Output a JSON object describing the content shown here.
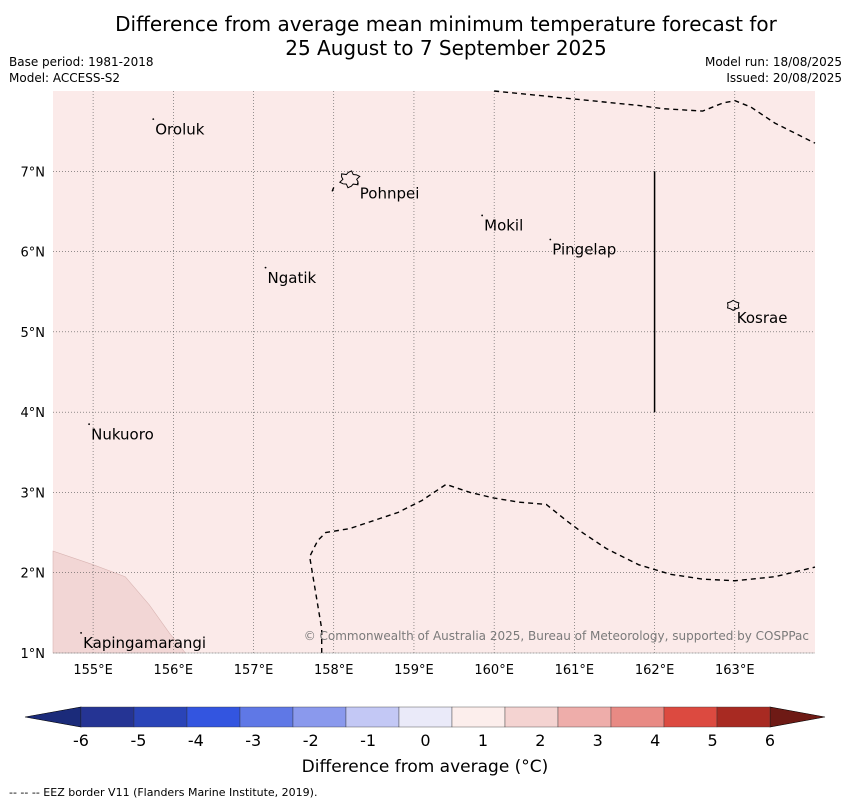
{
  "header": {
    "title_line1": "Difference from average mean minimum temperature forecast for",
    "title_line2": "25 August to 7 September 2025",
    "base_period": "Base period: 1981-2018",
    "model": "Model: ACCESS-S2",
    "model_run": "Model run: 18/08/2025",
    "issued": "Issued: 20/08/2025"
  },
  "map": {
    "lon_range": [
      154.5,
      164.0
    ],
    "lat_range": [
      1.0,
      8.0
    ],
    "background_color": "#fbeae9",
    "anomaly_patch_color": "#f2d6d5",
    "x_ticks": [
      {
        "value": 155,
        "label": "155°E"
      },
      {
        "value": 156,
        "label": "156°E"
      },
      {
        "value": 157,
        "label": "157°E"
      },
      {
        "value": 158,
        "label": "158°E"
      },
      {
        "value": 159,
        "label": "159°E"
      },
      {
        "value": 160,
        "label": "160°E"
      },
      {
        "value": 161,
        "label": "161°E"
      },
      {
        "value": 162,
        "label": "162°E"
      },
      {
        "value": 163,
        "label": "163°E"
      }
    ],
    "y_ticks": [
      {
        "value": 1,
        "label": "1°N"
      },
      {
        "value": 2,
        "label": "2°N"
      },
      {
        "value": 3,
        "label": "3°N"
      },
      {
        "value": 4,
        "label": "4°N"
      },
      {
        "value": 5,
        "label": "5°N"
      },
      {
        "value": 6,
        "label": "6°N"
      },
      {
        "value": 7,
        "label": "7°N"
      }
    ],
    "places": [
      {
        "name": "Oroluk",
        "lon": 155.75,
        "lat": 7.65
      },
      {
        "name": "Pohnpei",
        "lon": 158.3,
        "lat": 6.85
      },
      {
        "name": "Mokil",
        "lon": 159.85,
        "lat": 6.45
      },
      {
        "name": "Pingelap",
        "lon": 160.7,
        "lat": 6.15
      },
      {
        "name": "Ngatik",
        "lon": 157.15,
        "lat": 5.8
      },
      {
        "name": "Kosrae",
        "lon": 163.0,
        "lat": 5.3
      },
      {
        "name": "Nukuoro",
        "lon": 154.95,
        "lat": 3.85
      },
      {
        "name": "Kapingamarangi",
        "lon": 154.85,
        "lat": 1.25
      }
    ],
    "eez_borders": [
      [
        [
          160.0,
          8.0
        ],
        [
          160.5,
          7.95
        ],
        [
          161.0,
          7.9
        ],
        [
          161.5,
          7.85
        ],
        [
          161.8,
          7.82
        ],
        [
          162.1,
          7.78
        ],
        [
          162.6,
          7.75
        ],
        [
          162.85,
          7.85
        ],
        [
          163.0,
          7.88
        ],
        [
          163.2,
          7.8
        ],
        [
          163.5,
          7.6
        ],
        [
          163.8,
          7.45
        ],
        [
          164.0,
          7.35
        ]
      ],
      [
        [
          157.85,
          1.0
        ],
        [
          157.85,
          1.3
        ],
        [
          157.8,
          1.6
        ],
        [
          157.75,
          1.9
        ],
        [
          157.7,
          2.2
        ],
        [
          157.8,
          2.4
        ],
        [
          157.9,
          2.5
        ],
        [
          158.2,
          2.55
        ],
        [
          158.5,
          2.65
        ],
        [
          158.8,
          2.75
        ],
        [
          159.1,
          2.9
        ],
        [
          159.4,
          3.1
        ],
        [
          159.7,
          3.0
        ],
        [
          160.0,
          2.93
        ],
        [
          160.3,
          2.88
        ],
        [
          160.65,
          2.85
        ],
        [
          160.9,
          2.65
        ],
        [
          161.1,
          2.5
        ],
        [
          161.4,
          2.3
        ],
        [
          161.8,
          2.1
        ],
        [
          162.2,
          1.98
        ],
        [
          162.6,
          1.92
        ],
        [
          163.0,
          1.9
        ],
        [
          163.5,
          1.95
        ],
        [
          164.0,
          2.07
        ]
      ],
      [
        [
          158.0,
          6.8
        ],
        [
          157.98,
          6.75
        ]
      ]
    ],
    "boundary_line": [
      [
        162.0,
        7.0
      ],
      [
        162.0,
        4.0
      ]
    ],
    "copyright": "© Commonwealth of Australia 2025, Bureau of Meteorology, supported by COSPPac"
  },
  "colorbar": {
    "ticks": [
      "-6",
      "-5",
      "-4",
      "-3",
      "-2",
      "-1",
      "0",
      "1",
      "2",
      "3",
      "4",
      "5",
      "6"
    ],
    "colors": [
      "#253494",
      "#2a44b8",
      "#3355e0",
      "#5f78e6",
      "#8a99ed",
      "#c3c8f5",
      "#eaeaf9",
      "#fceeec",
      "#f4d3d1",
      "#eeadaa",
      "#e88a84",
      "#dc4a40",
      "#a82a22"
    ],
    "under_color": "#1b2b7a",
    "over_color": "#6e1a15",
    "label": "Difference from average (°C)"
  },
  "footer": {
    "eez_note": "--  --  -- EEZ border V11 (Flanders Marine Institute, 2019)."
  }
}
